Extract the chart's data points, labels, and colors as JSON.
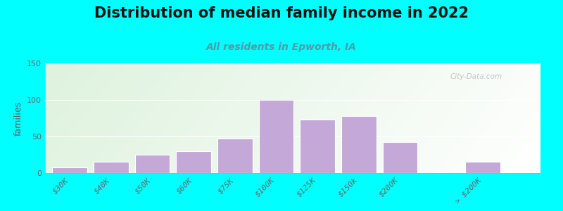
{
  "title": "Distribution of median family income in 2022",
  "subtitle": "All residents in Epworth, IA",
  "ylabel": "families",
  "background_outer": "#00FFFF",
  "background_inner_left": "#deeedd",
  "background_inner_right": "#f5f5f5",
  "bar_color": "#c4a8d8",
  "bar_edge_color": "#ffffff",
  "categories": [
    "$30K",
    "$40K",
    "$50K",
    "$60K",
    "$75K",
    "$100K",
    "$125K",
    "$150k",
    "$200K",
    "> $200K"
  ],
  "values": [
    8,
    15,
    25,
    30,
    47,
    100,
    73,
    78,
    42,
    15
  ],
  "bar_positions": [
    0,
    1,
    2,
    3,
    4,
    5,
    6,
    7,
    8,
    10
  ],
  "ylim": [
    0,
    150
  ],
  "yticks": [
    0,
    50,
    100,
    150
  ],
  "watermark": "City-Data.com",
  "title_fontsize": 15,
  "subtitle_fontsize": 10,
  "ylabel_fontsize": 9,
  "tick_fontsize": 8,
  "subtitle_color": "#5599aa"
}
